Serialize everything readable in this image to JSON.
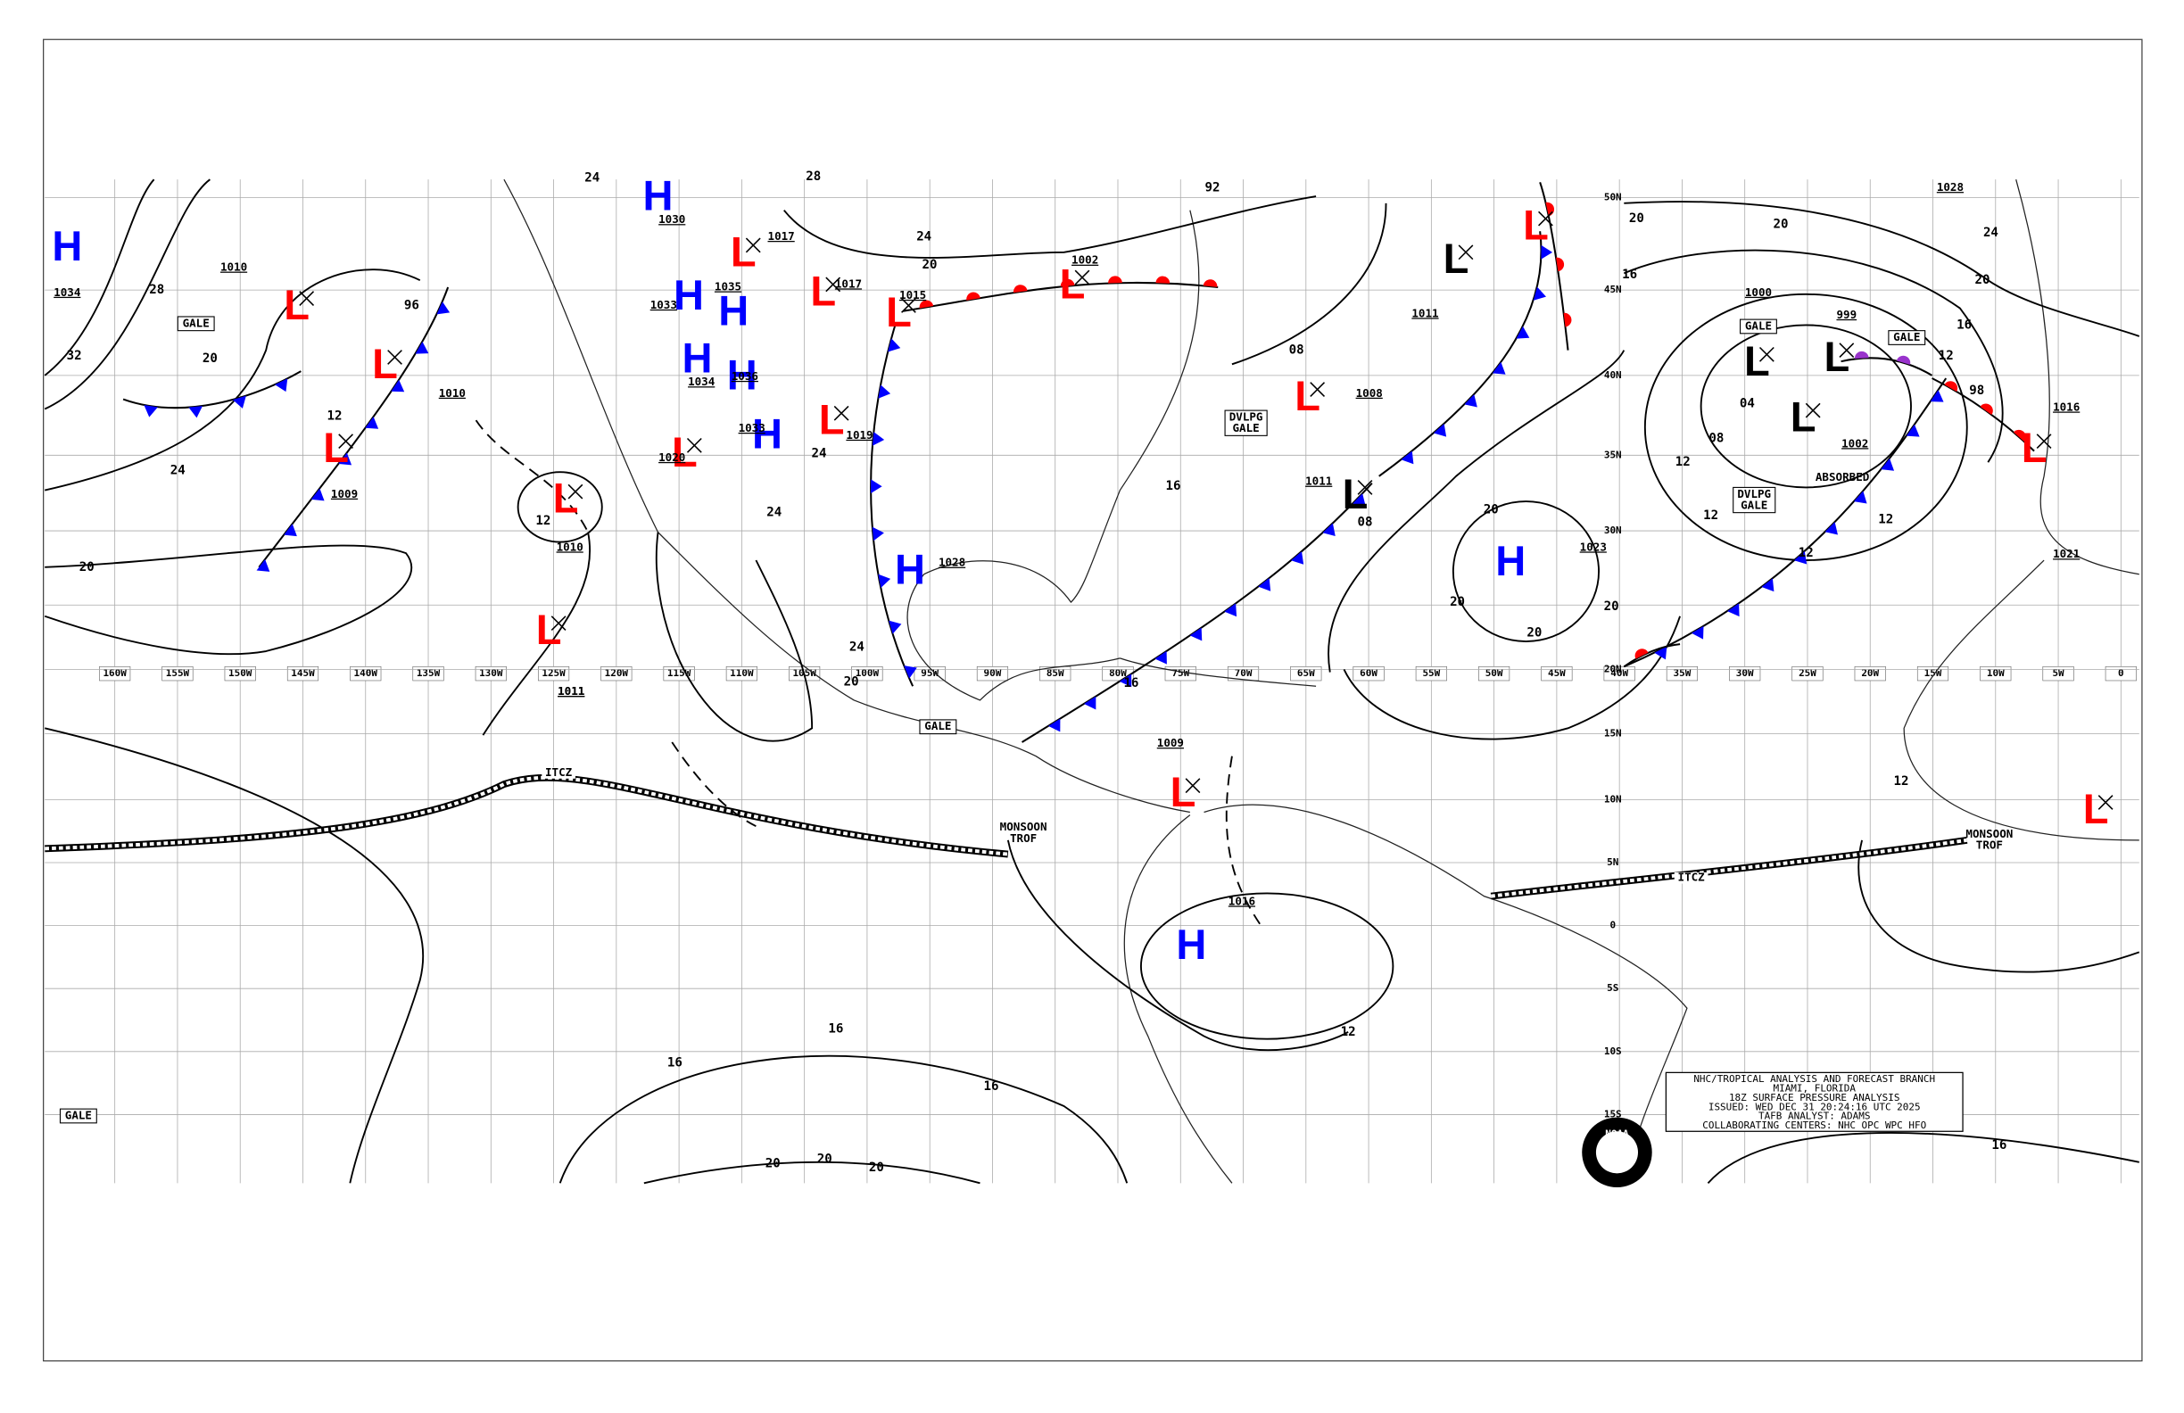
{
  "longitudes": [
    "160W",
    "155W",
    "150W",
    "145W",
    "140W",
    "135W",
    "130W",
    "125W",
    "120W",
    "115W",
    "110W",
    "105W",
    "100W",
    "95W",
    "90W",
    "85W",
    "80W",
    "75W",
    "70W",
    "65W",
    "60W",
    "55W",
    "50W",
    "45W",
    "40W",
    "35W",
    "30W",
    "25W",
    "20W",
    "15W",
    "10W",
    "5W",
    "0"
  ],
  "latitudes": [
    "50N",
    "45N",
    "40N",
    "35N",
    "30N",
    "20N",
    "15N",
    "10N",
    "5N",
    "0",
    "5S",
    "10S",
    "15S"
  ],
  "pressure_centers": [
    {
      "symbol": "H",
      "value": "1034",
      "color": "#0000ff"
    },
    {
      "symbol": "L",
      "color": "#ff0000"
    },
    {
      "symbol": "L",
      "color": "#ff0000"
    },
    {
      "symbol": "L",
      "value": "1009",
      "color": "#ff0000"
    },
    {
      "symbol": "L",
      "value": "1010",
      "color": "#ff0000"
    },
    {
      "symbol": "L",
      "value": "1011",
      "color": "#ff0000"
    },
    {
      "symbol": "H",
      "value": "1030",
      "color": "#0000ff"
    },
    {
      "symbol": "H",
      "value": "1033",
      "color": "#0000ff"
    },
    {
      "symbol": "H",
      "value": "1035",
      "color": "#0000ff"
    },
    {
      "symbol": "H",
      "value": "1034",
      "color": "#0000ff"
    },
    {
      "symbol": "H",
      "value": "1036",
      "color": "#0000ff"
    },
    {
      "symbol": "H",
      "value": "1033",
      "color": "#0000ff"
    },
    {
      "symbol": "L",
      "value": "1017",
      "color": "#ff0000"
    },
    {
      "symbol": "L",
      "value": "1017",
      "color": "#ff0000"
    },
    {
      "symbol": "L",
      "value": "1015",
      "color": "#ff0000"
    },
    {
      "symbol": "L",
      "value": "1019",
      "color": "#ff0000"
    },
    {
      "symbol": "L",
      "value": "1020",
      "color": "#ff0000"
    },
    {
      "symbol": "H",
      "value": "1028",
      "color": "#0000ff"
    },
    {
      "symbol": "L",
      "value": "1002",
      "color": "#ff0000"
    },
    {
      "symbol": "L",
      "color": "#000000"
    },
    {
      "symbol": "L",
      "color": "#ff0000"
    },
    {
      "symbol": "L",
      "value": "1008",
      "color": "#ff0000"
    },
    {
      "symbol": "L",
      "value": "1011",
      "color": "#000000"
    },
    {
      "symbol": "H",
      "value": "1023",
      "color": "#0000ff"
    },
    {
      "symbol": "L",
      "value": "1000",
      "color": "#000000"
    },
    {
      "symbol": "L",
      "value": "999",
      "color": "#000000"
    },
    {
      "symbol": "L",
      "value": "1002",
      "color": "#000000"
    },
    {
      "symbol": "L",
      "color": "#ff0000"
    },
    {
      "symbol": "L",
      "color": "#ff0000"
    },
    {
      "symbol": "H",
      "value": "1016",
      "color": "#0000ff"
    },
    {
      "symbol": "L",
      "value": "1009",
      "color": "#ff0000"
    }
  ],
  "pressure_labels": [
    "1010",
    "1010",
    "1011",
    "1011",
    "1016",
    "1021",
    "1028"
  ],
  "isobar_labels": [
    "28",
    "32",
    "20",
    "24",
    "20",
    "96",
    "12",
    "12",
    "20",
    "16",
    "20",
    "24",
    "20",
    "16",
    "98",
    "12",
    "12",
    "08",
    "04",
    "12",
    "12",
    "12",
    "20",
    "20",
    "20",
    "20",
    "16",
    "16",
    "08",
    "24",
    "20",
    "24",
    "20",
    "16",
    "16",
    "16",
    "20",
    "20",
    "20",
    "12",
    "12",
    "16",
    "24",
    "92",
    "08",
    "28",
    "24",
    "24"
  ],
  "features": {
    "gale": [
      "GALE",
      "GALE",
      "GALE",
      "GALE",
      "GALE"
    ],
    "developing_gale": [
      {
        "line1": "DVLPG",
        "line2": "GALE"
      },
      {
        "line1": "DVLPG",
        "line2": "GALE"
      }
    ],
    "itcz": [
      "ITCZ",
      "ITCZ"
    ],
    "monsoon_trough": [
      {
        "line1": "MONSOON",
        "line2": "TROF"
      },
      {
        "line1": "MONSOON",
        "line2": "TROF"
      }
    ],
    "absorbed": "ABSORBED"
  },
  "info_box": [
    "NHC/TROPICAL ANALYSIS AND FORECAST BRANCH",
    "MIAMI, FLORIDA",
    "18Z SURFACE PRESSURE ANALYSIS",
    "ISSUED: WED DEC 31 20:24:16 UTC 2025",
    "TAFB ANALYST: ADAMS",
    "COLLABORATING CENTERS: NHC OPC WPC HFO"
  ],
  "logo": "NOAA"
}
